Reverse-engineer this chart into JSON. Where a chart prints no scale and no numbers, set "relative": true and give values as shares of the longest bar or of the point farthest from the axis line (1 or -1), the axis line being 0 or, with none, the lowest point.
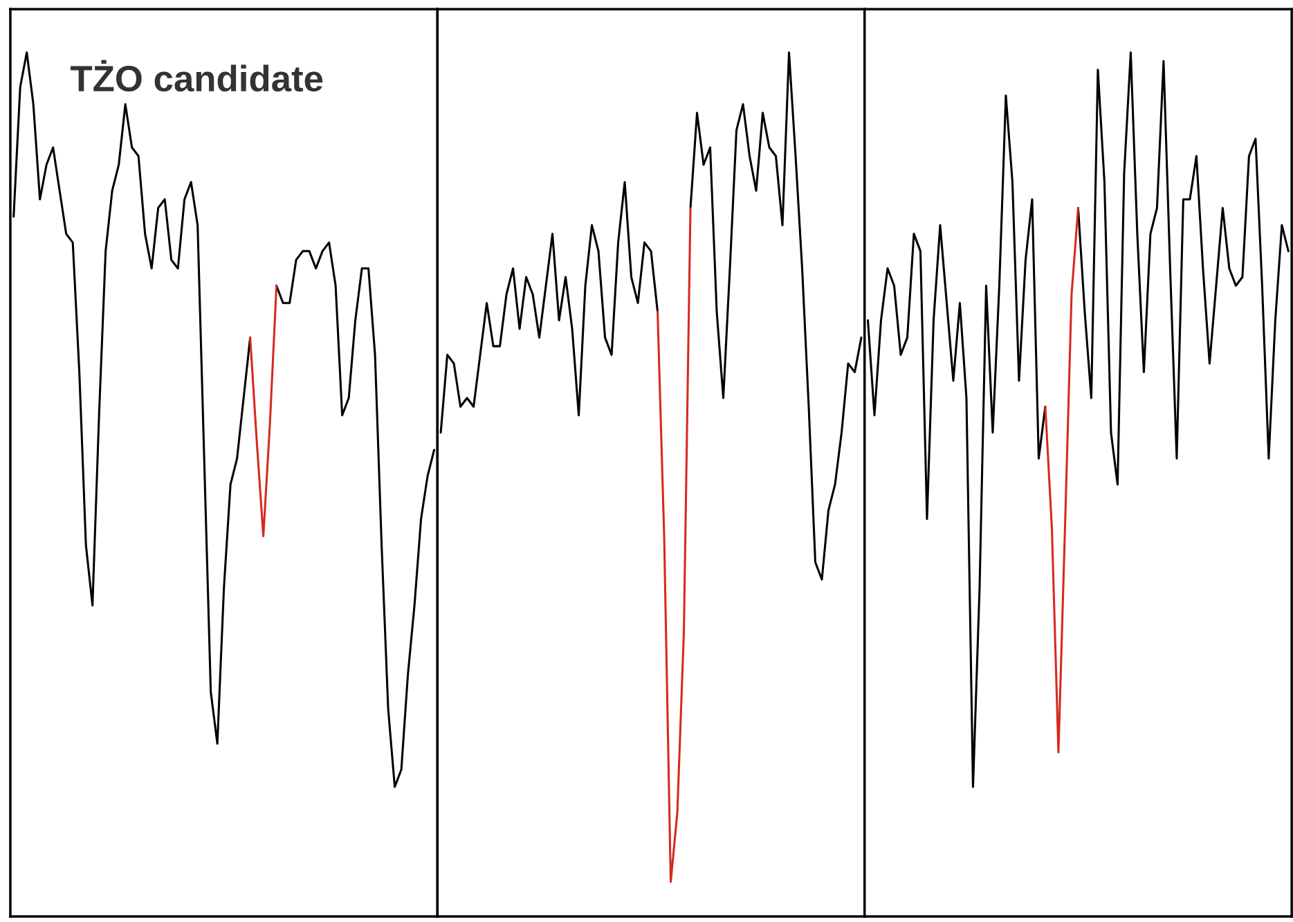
{
  "chart_data": [
    {
      "type": "line",
      "relative": true,
      "annotations": [
        "TŻO candidate"
      ],
      "categories": [
        null,
        null,
        null,
        null,
        null,
        null,
        null,
        null,
        null,
        null,
        null,
        null,
        null,
        null,
        null,
        null,
        null,
        null,
        null,
        null,
        null,
        null,
        null,
        null,
        null,
        null,
        null,
        null,
        null,
        null,
        null,
        null,
        null,
        null,
        null,
        null,
        null,
        null,
        null,
        null,
        null,
        null,
        null,
        null,
        null,
        null,
        null,
        null,
        null,
        null,
        null,
        null,
        null,
        null,
        null,
        null,
        null,
        null,
        null,
        null,
        null,
        null,
        null,
        null,
        null
      ],
      "series": [
        {
          "color": "#000000",
          "values": [
            0.81,
            0.96,
            1.0,
            0.94,
            0.83,
            0.87,
            0.89,
            0.84,
            0.79,
            0.78,
            0.63,
            0.43,
            0.36,
            0.58,
            0.77,
            0.84,
            0.87,
            0.94,
            0.89,
            0.88,
            0.79,
            0.75,
            0.82,
            0.83,
            0.76,
            0.75,
            0.83,
            0.85,
            0.8,
            0.53,
            0.26,
            0.2,
            0.38,
            0.5,
            0.53,
            0.6,
            0.67,
            null,
            null,
            null,
            0.73,
            0.71,
            0.71,
            0.76,
            0.77,
            0.77,
            0.75,
            0.77,
            0.78,
            0.73,
            0.58,
            0.6,
            0.69,
            0.75,
            0.75,
            0.65,
            0.43,
            0.24,
            0.15,
            0.17,
            0.28,
            0.36,
            0.46,
            0.51,
            0.54
          ]
        },
        {
          "color": "#d42a1e",
          "values": [
            null,
            null,
            null,
            null,
            null,
            null,
            null,
            null,
            null,
            null,
            null,
            null,
            null,
            null,
            null,
            null,
            null,
            null,
            null,
            null,
            null,
            null,
            null,
            null,
            null,
            null,
            null,
            null,
            null,
            null,
            null,
            null,
            null,
            null,
            null,
            null,
            0.67,
            0.55,
            0.44,
            0.57,
            0.73,
            null,
            null,
            null,
            null,
            null,
            null,
            null,
            null,
            null,
            null,
            null,
            null,
            null,
            null,
            null,
            null,
            null,
            null,
            null,
            null,
            null,
            null,
            null,
            null
          ]
        }
      ]
    },
    {
      "type": "line",
      "relative": true,
      "categories": [
        null,
        null,
        null,
        null,
        null,
        null,
        null,
        null,
        null,
        null,
        null,
        null,
        null,
        null,
        null,
        null,
        null,
        null,
        null,
        null,
        null,
        null,
        null,
        null,
        null,
        null,
        null,
        null,
        null,
        null,
        null,
        null,
        null,
        null,
        null,
        null,
        null,
        null,
        null,
        null,
        null,
        null,
        null,
        null,
        null,
        null,
        null,
        null,
        null,
        null,
        null,
        null,
        null,
        null,
        null,
        null,
        null,
        null,
        null,
        null,
        null,
        null,
        null,
        null,
        null
      ],
      "series": [
        {
          "color": "#000000",
          "values": [
            0.56,
            0.65,
            0.64,
            0.59,
            0.6,
            0.59,
            0.65,
            0.71,
            0.66,
            0.66,
            0.72,
            0.75,
            0.68,
            0.74,
            0.72,
            0.67,
            0.73,
            0.79,
            0.69,
            0.74,
            0.68,
            0.58,
            0.73,
            0.8,
            0.77,
            0.67,
            0.65,
            0.78,
            0.85,
            0.74,
            0.71,
            0.78,
            0.77,
            0.7,
            null,
            null,
            null,
            null,
            0.82,
            0.93,
            0.87,
            0.89,
            0.7,
            0.6,
            0.75,
            0.91,
            0.94,
            0.88,
            0.84,
            0.93,
            0.89,
            0.88,
            0.8,
            1.0,
            0.88,
            0.75,
            0.59,
            0.41,
            0.39,
            0.47,
            0.5,
            0.56,
            0.64,
            0.63,
            0.67
          ]
        },
        {
          "color": "#d42a1e",
          "values": [
            null,
            null,
            null,
            null,
            null,
            null,
            null,
            null,
            null,
            null,
            null,
            null,
            null,
            null,
            null,
            null,
            null,
            null,
            null,
            null,
            null,
            null,
            null,
            null,
            null,
            null,
            null,
            null,
            null,
            null,
            null,
            null,
            null,
            0.7,
            0.44,
            0.04,
            0.12,
            0.33,
            0.82,
            null,
            null,
            null,
            null,
            null,
            null,
            null,
            null,
            null,
            null,
            null,
            null,
            null,
            null,
            null,
            null,
            null,
            null,
            null,
            null,
            null,
            null,
            null,
            null,
            null,
            null
          ]
        }
      ]
    },
    {
      "type": "line",
      "relative": true,
      "categories": [
        null,
        null,
        null,
        null,
        null,
        null,
        null,
        null,
        null,
        null,
        null,
        null,
        null,
        null,
        null,
        null,
        null,
        null,
        null,
        null,
        null,
        null,
        null,
        null,
        null,
        null,
        null,
        null,
        null,
        null,
        null,
        null,
        null,
        null,
        null,
        null,
        null,
        null,
        null,
        null,
        null,
        null,
        null,
        null,
        null,
        null,
        null,
        null,
        null,
        null,
        null,
        null,
        null,
        null,
        null,
        null,
        null,
        null,
        null,
        null,
        null,
        null,
        null,
        null,
        null
      ],
      "series": [
        {
          "color": "#000000",
          "values": [
            0.69,
            0.58,
            0.69,
            0.75,
            0.73,
            0.65,
            0.67,
            0.79,
            0.77,
            0.46,
            0.69,
            0.8,
            0.71,
            0.62,
            0.71,
            0.6,
            0.15,
            0.38,
            0.73,
            0.56,
            0.73,
            0.95,
            0.85,
            0.62,
            0.76,
            0.83,
            0.53,
            0.59,
            null,
            null,
            null,
            null,
            0.82,
            0.7,
            0.6,
            0.98,
            0.85,
            0.56,
            0.5,
            0.86,
            1.0,
            0.79,
            0.63,
            0.79,
            0.82,
            0.99,
            0.75,
            0.53,
            0.83,
            0.83,
            0.88,
            0.75,
            0.64,
            0.73,
            0.82,
            0.75,
            0.73,
            0.74,
            0.88,
            0.9,
            0.73,
            0.53,
            0.69,
            0.8,
            0.77
          ]
        },
        {
          "color": "#d42a1e",
          "values": [
            null,
            null,
            null,
            null,
            null,
            null,
            null,
            null,
            null,
            null,
            null,
            null,
            null,
            null,
            null,
            null,
            null,
            null,
            null,
            null,
            null,
            null,
            null,
            null,
            null,
            null,
            null,
            0.59,
            0.45,
            0.19,
            0.45,
            0.72,
            0.82,
            null,
            null,
            null,
            null,
            null,
            null,
            null,
            null,
            null,
            null,
            null,
            null,
            null,
            null,
            null,
            null,
            null,
            null,
            null,
            null,
            null,
            null,
            null,
            null,
            null,
            null,
            null,
            null,
            null,
            null,
            null,
            null
          ]
        }
      ]
    }
  ]
}
